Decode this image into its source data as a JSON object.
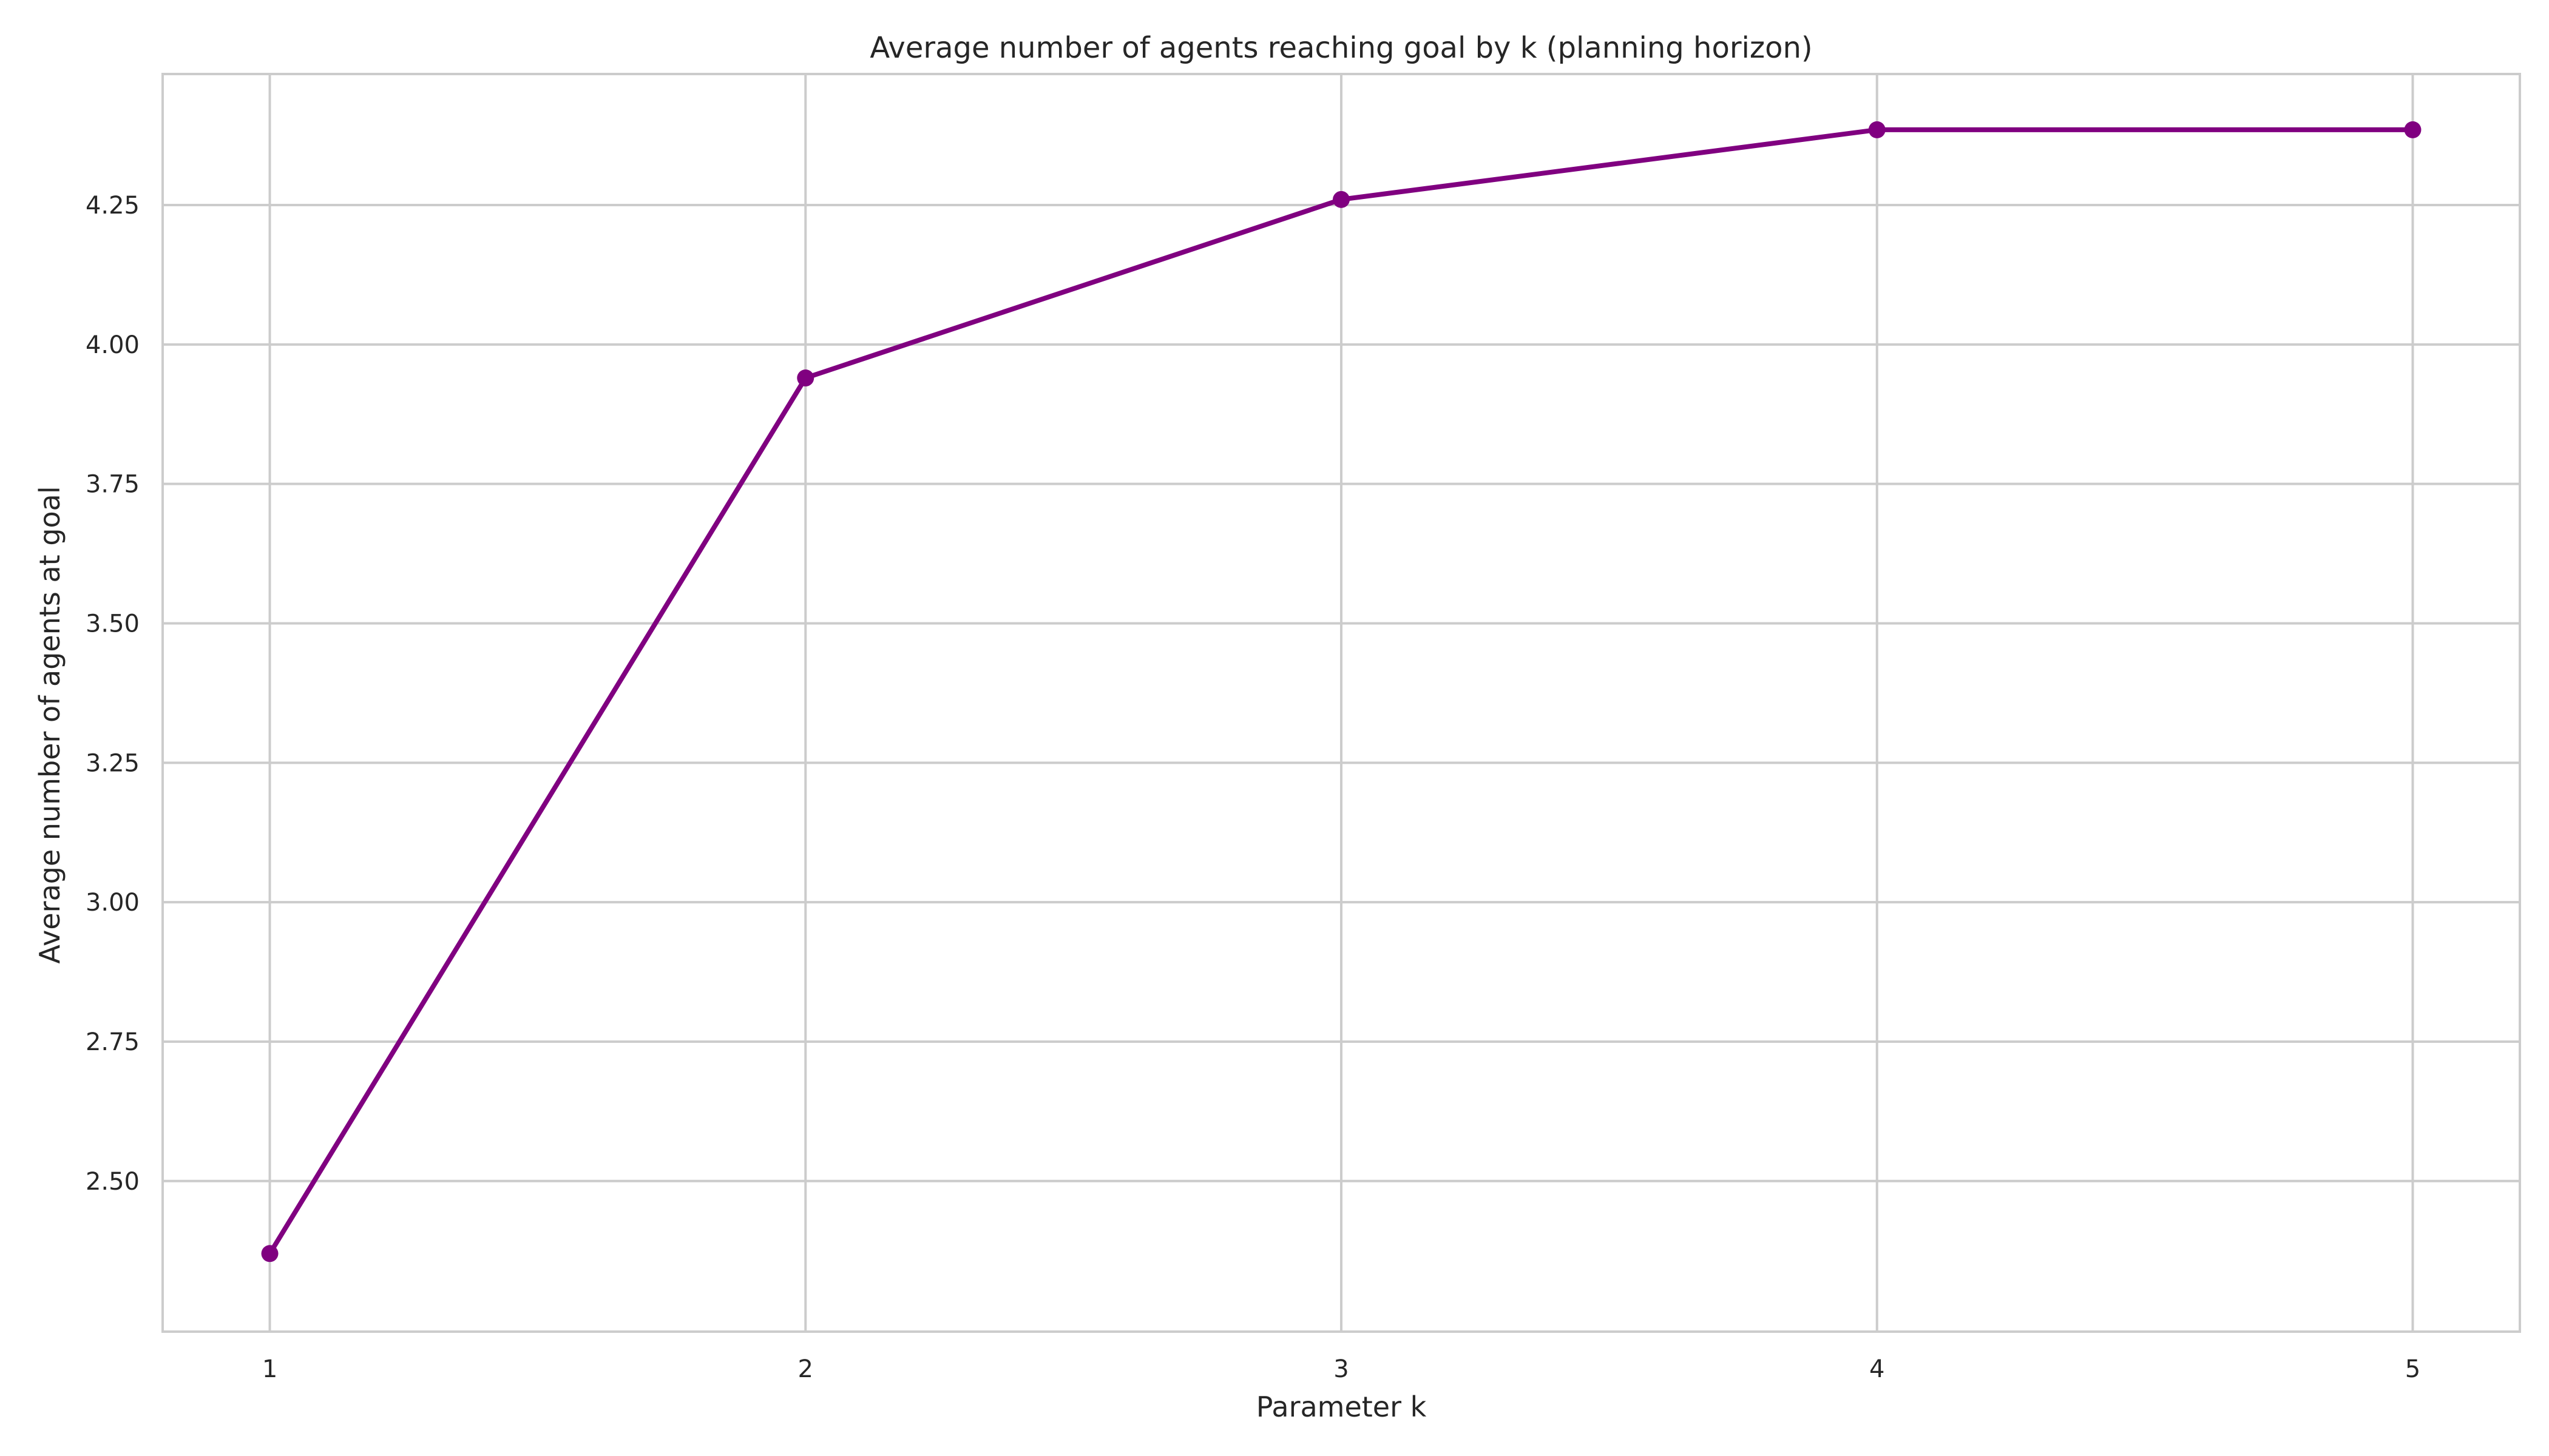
{
  "chart_data": {
    "type": "line",
    "title": "Average number of agents reaching goal by k (planning horizon)",
    "xlabel": "Parameter k",
    "ylabel": "Average number of agents at goal",
    "x": [
      1,
      2,
      3,
      4,
      5
    ],
    "series": [
      {
        "values": [
          2.37,
          3.94,
          4.26,
          4.385,
          4.385
        ],
        "color": "#800080"
      }
    ],
    "xlim": [
      0.8,
      5.2
    ],
    "ylim": [
      2.23,
      4.485
    ],
    "xticks": [
      1,
      2,
      3,
      4,
      5
    ],
    "xtick_labels": [
      "1",
      "2",
      "3",
      "4",
      "5"
    ],
    "yticks": [
      2.5,
      2.75,
      3.0,
      3.25,
      3.5,
      3.75,
      4.0,
      4.25
    ],
    "ytick_labels": [
      "2.50",
      "2.75",
      "3.00",
      "3.25",
      "3.50",
      "3.75",
      "4.00",
      "4.25"
    ],
    "grid": true,
    "legend": "none",
    "marker": "circle"
  }
}
